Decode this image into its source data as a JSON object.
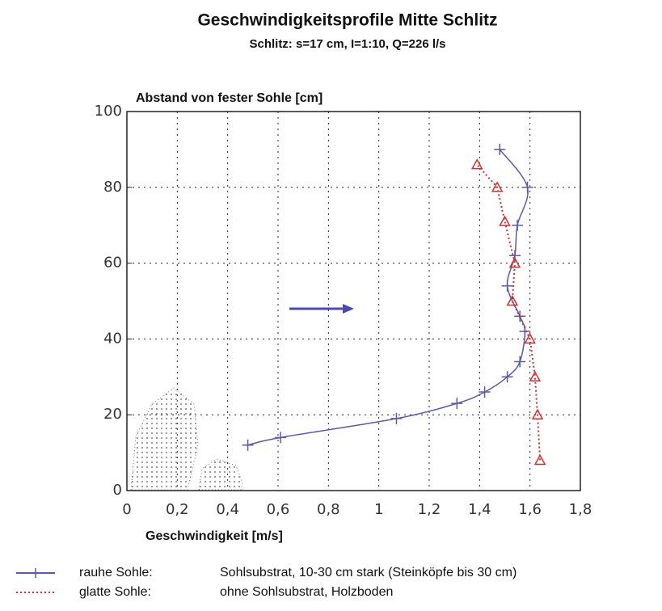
{
  "chart_data": {
    "type": "line",
    "title": "Geschwindigkeitsprofile Mitte Schlitz",
    "subtitle": "Schlitz: s=17 cm, I=1:10, Q=226 l/s",
    "y_label": "Abstand von fester Sohle [cm]",
    "x_label": "Geschwindigkeit [m/s]",
    "xlim": [
      0,
      1.8
    ],
    "ylim": [
      0,
      100
    ],
    "xticks": [
      0,
      {
        "value": 0.2,
        "label": "0,2"
      },
      {
        "value": 0.4,
        "label": "0,4"
      },
      {
        "value": 0.6,
        "label": "0,6"
      },
      {
        "value": 0.8,
        "label": "0,8"
      },
      1,
      {
        "value": 1.2,
        "label": "1,2"
      },
      {
        "value": 1.4,
        "label": "1,4"
      },
      {
        "value": 1.6,
        "label": "1,6"
      },
      {
        "value": 1.8,
        "label": "1,8"
      }
    ],
    "yticks": [
      0,
      20,
      40,
      60,
      80,
      100
    ],
    "grid": true,
    "series": [
      {
        "name": "rauhe Sohle:",
        "description": "Sohlsubstrat, 10-30 cm stark (Steinköpfe bis 30 cm)",
        "color": "#5a5aa8",
        "marker": "plus",
        "line": "solid",
        "x": [
          0.48,
          0.61,
          1.07,
          1.31,
          1.42,
          1.51,
          1.56,
          1.58,
          1.56,
          1.51,
          1.54,
          1.55,
          1.59,
          1.48
        ],
        "values": [
          12,
          14,
          19,
          23,
          26,
          30,
          34,
          42,
          46,
          54,
          62,
          70,
          80,
          90
        ]
      },
      {
        "name": "glatte Sohle:",
        "description": "ohne Sohlsubstrat, Holzboden",
        "color": "#d03030",
        "marker": "triangle",
        "line": "dotted",
        "x": [
          1.64,
          1.63,
          1.62,
          1.6,
          1.53,
          1.54,
          1.5,
          1.47,
          1.39
        ],
        "values": [
          8,
          20,
          30,
          40,
          50,
          60,
          71,
          80,
          86
        ]
      }
    ]
  }
}
